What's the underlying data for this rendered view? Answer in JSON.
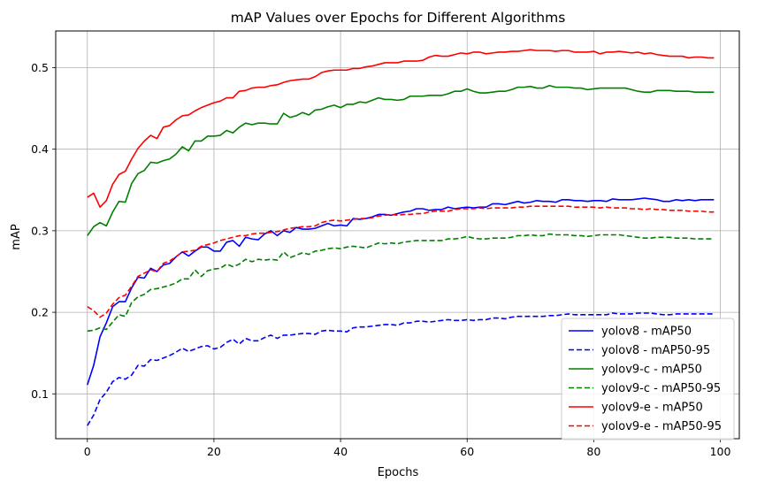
{
  "chart_data": {
    "type": "line",
    "title": "mAP Values over Epochs for Different Algorithms",
    "xlabel": "Epochs",
    "ylabel": "mAP",
    "xlim": [
      -5,
      103
    ],
    "ylim": [
      0.045,
      0.545
    ],
    "xticks": [
      0,
      20,
      40,
      60,
      80,
      100
    ],
    "yticks": [
      0.1,
      0.2,
      0.3,
      0.4,
      0.5
    ],
    "xtick_labels": [
      "0",
      "20",
      "40",
      "60",
      "80",
      "100"
    ],
    "ytick_labels": [
      "0.1",
      "0.2",
      "0.3",
      "0.4",
      "0.5"
    ],
    "grid": true,
    "legend_position": "bottom-right",
    "x": [
      0,
      1,
      2,
      3,
      4,
      5,
      6,
      7,
      8,
      9,
      10,
      11,
      12,
      13,
      14,
      15,
      16,
      17,
      18,
      19,
      20,
      21,
      22,
      23,
      24,
      25,
      26,
      27,
      28,
      29,
      30,
      31,
      32,
      33,
      34,
      35,
      36,
      37,
      38,
      39,
      40,
      41,
      42,
      43,
      44,
      45,
      46,
      47,
      48,
      49,
      50,
      51,
      52,
      53,
      54,
      55,
      56,
      57,
      58,
      59,
      60,
      61,
      62,
      63,
      64,
      65,
      66,
      67,
      68,
      69,
      70,
      71,
      72,
      73,
      74,
      75,
      76,
      77,
      78,
      79,
      80,
      81,
      82,
      83,
      84,
      85,
      86,
      87,
      88,
      89,
      90,
      91,
      92,
      93,
      94,
      95,
      96,
      97,
      98,
      99
    ],
    "series": [
      {
        "name": "yolov8 - mAP50",
        "color": "#0000ff",
        "dash": "solid",
        "values": [
          0.111,
          0.135,
          0.17,
          0.187,
          0.207,
          0.213,
          0.213,
          0.23,
          0.243,
          0.242,
          0.254,
          0.25,
          0.258,
          0.26,
          0.268,
          0.274,
          0.269,
          0.275,
          0.28,
          0.28,
          0.275,
          0.275,
          0.286,
          0.288,
          0.281,
          0.292,
          0.29,
          0.289,
          0.296,
          0.3,
          0.294,
          0.3,
          0.298,
          0.304,
          0.302,
          0.302,
          0.303,
          0.306,
          0.309,
          0.306,
          0.307,
          0.306,
          0.315,
          0.314,
          0.315,
          0.317,
          0.32,
          0.32,
          0.319,
          0.321,
          0.323,
          0.324,
          0.327,
          0.327,
          0.325,
          0.326,
          0.326,
          0.329,
          0.327,
          0.328,
          0.329,
          0.328,
          0.329,
          0.329,
          0.333,
          0.333,
          0.332,
          0.334,
          0.336,
          0.334,
          0.335,
          0.337,
          0.336,
          0.336,
          0.335,
          0.338,
          0.338,
          0.337,
          0.337,
          0.336,
          0.337,
          0.337,
          0.336,
          0.339,
          0.338,
          0.338,
          0.338,
          0.339,
          0.34,
          0.339,
          0.338,
          0.336,
          0.336,
          0.338,
          0.337,
          0.338,
          0.337,
          0.338,
          0.338,
          0.338
        ]
      },
      {
        "name": "yolov8 - mAP50-95",
        "color": "#0000ff",
        "dash": "dashed",
        "values": [
          0.061,
          0.074,
          0.093,
          0.102,
          0.115,
          0.12,
          0.118,
          0.123,
          0.135,
          0.134,
          0.142,
          0.141,
          0.144,
          0.147,
          0.151,
          0.156,
          0.152,
          0.155,
          0.158,
          0.159,
          0.155,
          0.157,
          0.163,
          0.167,
          0.161,
          0.168,
          0.165,
          0.165,
          0.169,
          0.172,
          0.168,
          0.172,
          0.172,
          0.173,
          0.174,
          0.174,
          0.173,
          0.177,
          0.178,
          0.177,
          0.177,
          0.176,
          0.181,
          0.182,
          0.182,
          0.183,
          0.184,
          0.185,
          0.185,
          0.184,
          0.187,
          0.187,
          0.189,
          0.189,
          0.188,
          0.189,
          0.19,
          0.191,
          0.19,
          0.19,
          0.191,
          0.19,
          0.191,
          0.191,
          0.193,
          0.193,
          0.192,
          0.194,
          0.195,
          0.195,
          0.195,
          0.195,
          0.195,
          0.196,
          0.196,
          0.197,
          0.198,
          0.197,
          0.197,
          0.197,
          0.197,
          0.197,
          0.197,
          0.199,
          0.198,
          0.198,
          0.198,
          0.199,
          0.199,
          0.199,
          0.198,
          0.197,
          0.197,
          0.198,
          0.198,
          0.198,
          0.198,
          0.198,
          0.198,
          0.198
        ]
      },
      {
        "name": "yolov9-c - mAP50",
        "color": "#008000",
        "dash": "solid",
        "values": [
          0.294,
          0.305,
          0.31,
          0.306,
          0.323,
          0.336,
          0.335,
          0.358,
          0.37,
          0.374,
          0.384,
          0.383,
          0.386,
          0.388,
          0.394,
          0.403,
          0.398,
          0.41,
          0.41,
          0.416,
          0.416,
          0.417,
          0.423,
          0.42,
          0.427,
          0.432,
          0.43,
          0.432,
          0.432,
          0.431,
          0.431,
          0.444,
          0.439,
          0.441,
          0.445,
          0.442,
          0.448,
          0.449,
          0.452,
          0.454,
          0.451,
          0.455,
          0.455,
          0.458,
          0.457,
          0.46,
          0.463,
          0.461,
          0.461,
          0.46,
          0.461,
          0.465,
          0.465,
          0.465,
          0.466,
          0.466,
          0.466,
          0.468,
          0.471,
          0.471,
          0.474,
          0.471,
          0.469,
          0.469,
          0.47,
          0.471,
          0.471,
          0.473,
          0.476,
          0.476,
          0.477,
          0.475,
          0.475,
          0.478,
          0.476,
          0.476,
          0.476,
          0.475,
          0.475,
          0.473,
          0.474,
          0.475,
          0.475,
          0.475,
          0.475,
          0.475,
          0.473,
          0.471,
          0.47,
          0.47,
          0.472,
          0.472,
          0.472,
          0.471,
          0.471,
          0.471,
          0.47,
          0.47,
          0.47,
          0.47
        ]
      },
      {
        "name": "yolov9-c - mAP50-95",
        "color": "#008000",
        "dash": "dashed",
        "values": [
          0.177,
          0.178,
          0.181,
          0.179,
          0.188,
          0.197,
          0.195,
          0.212,
          0.219,
          0.222,
          0.228,
          0.229,
          0.231,
          0.233,
          0.236,
          0.241,
          0.241,
          0.252,
          0.244,
          0.251,
          0.253,
          0.254,
          0.259,
          0.256,
          0.259,
          0.265,
          0.262,
          0.265,
          0.264,
          0.265,
          0.264,
          0.274,
          0.267,
          0.27,
          0.273,
          0.271,
          0.275,
          0.276,
          0.278,
          0.279,
          0.278,
          0.28,
          0.281,
          0.28,
          0.279,
          0.282,
          0.285,
          0.284,
          0.285,
          0.284,
          0.286,
          0.287,
          0.288,
          0.288,
          0.288,
          0.288,
          0.288,
          0.29,
          0.29,
          0.291,
          0.293,
          0.291,
          0.29,
          0.29,
          0.291,
          0.291,
          0.291,
          0.292,
          0.294,
          0.294,
          0.295,
          0.294,
          0.294,
          0.296,
          0.295,
          0.295,
          0.295,
          0.294,
          0.294,
          0.293,
          0.294,
          0.295,
          0.295,
          0.295,
          0.295,
          0.294,
          0.293,
          0.292,
          0.291,
          0.291,
          0.292,
          0.292,
          0.292,
          0.291,
          0.291,
          0.291,
          0.29,
          0.29,
          0.29,
          0.29
        ]
      },
      {
        "name": "yolov9-e - mAP50",
        "color": "#ff0000",
        "dash": "solid",
        "values": [
          0.341,
          0.346,
          0.329,
          0.337,
          0.357,
          0.369,
          0.373,
          0.388,
          0.401,
          0.41,
          0.417,
          0.413,
          0.427,
          0.429,
          0.436,
          0.441,
          0.442,
          0.447,
          0.451,
          0.454,
          0.457,
          0.459,
          0.463,
          0.463,
          0.471,
          0.472,
          0.475,
          0.476,
          0.476,
          0.478,
          0.479,
          0.482,
          0.484,
          0.485,
          0.486,
          0.486,
          0.489,
          0.494,
          0.496,
          0.497,
          0.497,
          0.497,
          0.499,
          0.499,
          0.501,
          0.502,
          0.504,
          0.506,
          0.506,
          0.506,
          0.508,
          0.508,
          0.508,
          0.509,
          0.513,
          0.515,
          0.514,
          0.514,
          0.516,
          0.518,
          0.517,
          0.519,
          0.519,
          0.517,
          0.518,
          0.519,
          0.519,
          0.52,
          0.52,
          0.521,
          0.522,
          0.521,
          0.521,
          0.521,
          0.52,
          0.521,
          0.521,
          0.519,
          0.519,
          0.519,
          0.52,
          0.517,
          0.519,
          0.519,
          0.52,
          0.519,
          0.518,
          0.519,
          0.517,
          0.518,
          0.516,
          0.515,
          0.514,
          0.514,
          0.514,
          0.512,
          0.513,
          0.513,
          0.512,
          0.512
        ]
      },
      {
        "name": "yolov9-e - mAP50-95",
        "color": "#ff0000",
        "dash": "dashed",
        "values": [
          0.207,
          0.202,
          0.194,
          0.199,
          0.21,
          0.218,
          0.221,
          0.232,
          0.244,
          0.248,
          0.252,
          0.25,
          0.26,
          0.263,
          0.268,
          0.274,
          0.275,
          0.276,
          0.281,
          0.283,
          0.285,
          0.288,
          0.29,
          0.292,
          0.294,
          0.294,
          0.296,
          0.297,
          0.297,
          0.298,
          0.299,
          0.301,
          0.303,
          0.304,
          0.305,
          0.305,
          0.306,
          0.31,
          0.312,
          0.313,
          0.312,
          0.313,
          0.314,
          0.315,
          0.315,
          0.316,
          0.318,
          0.319,
          0.32,
          0.319,
          0.32,
          0.32,
          0.321,
          0.321,
          0.323,
          0.324,
          0.324,
          0.324,
          0.326,
          0.327,
          0.327,
          0.327,
          0.328,
          0.327,
          0.328,
          0.328,
          0.328,
          0.328,
          0.329,
          0.329,
          0.33,
          0.33,
          0.33,
          0.33,
          0.33,
          0.33,
          0.33,
          0.329,
          0.329,
          0.329,
          0.329,
          0.328,
          0.329,
          0.328,
          0.328,
          0.328,
          0.327,
          0.327,
          0.326,
          0.327,
          0.326,
          0.326,
          0.325,
          0.325,
          0.325,
          0.324,
          0.324,
          0.324,
          0.323,
          0.323
        ]
      }
    ]
  }
}
